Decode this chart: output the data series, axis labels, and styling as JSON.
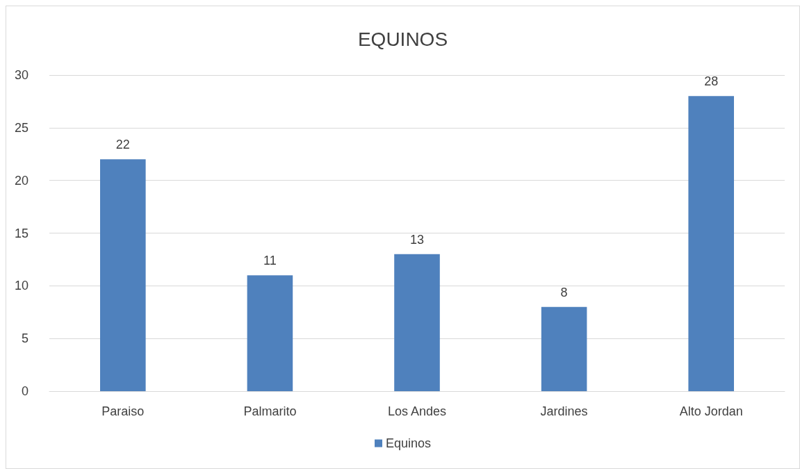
{
  "chart_data": {
    "type": "bar",
    "title": "EQUINOS",
    "categories": [
      "Paraiso",
      "Palmarito",
      "Los Andes",
      "Jardines",
      "Alto Jordan"
    ],
    "series": [
      {
        "name": "Equinos",
        "color": "#4f81bd",
        "values": [
          22,
          11,
          13,
          8,
          28
        ]
      }
    ],
    "ylim": [
      0,
      30
    ],
    "yticks": [
      0,
      5,
      10,
      15,
      20,
      25,
      30
    ],
    "grid": "y",
    "legend": "bottom",
    "data_labels": true
  }
}
